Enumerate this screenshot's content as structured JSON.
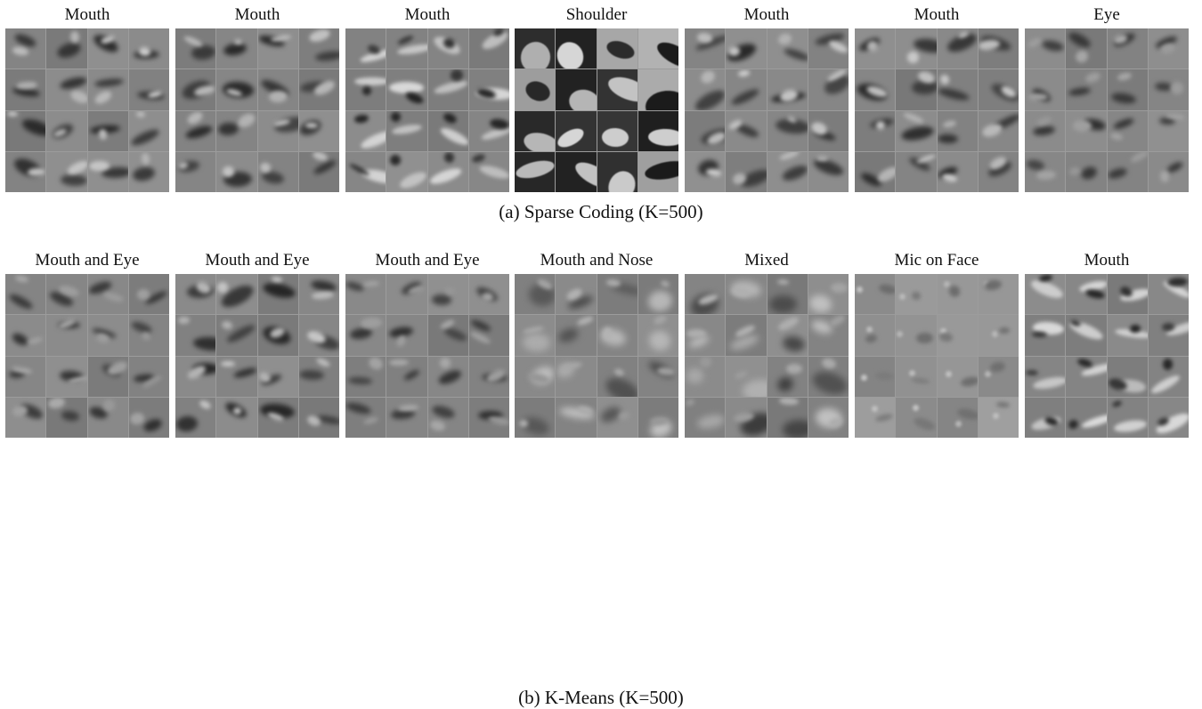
{
  "figures": [
    {
      "caption": "(a) Sparse Coding (K=500)",
      "panels": [
        {
          "label": "Mouth",
          "kind": "mouth"
        },
        {
          "label": "Mouth",
          "kind": "mouth"
        },
        {
          "label": "Mouth",
          "kind": "teeth"
        },
        {
          "label": "Shoulder",
          "kind": "shoulder"
        },
        {
          "label": "Mouth",
          "kind": "mouth"
        },
        {
          "label": "Mouth",
          "kind": "mouth"
        },
        {
          "label": "Eye",
          "kind": "eye"
        }
      ]
    },
    {
      "caption": "(b) K-Means (K=500)",
      "panels": [
        {
          "label": "Mouth and Eye",
          "kind": "eye"
        },
        {
          "label": "Mouth and Eye",
          "kind": "mouth"
        },
        {
          "label": "Mouth and Eye",
          "kind": "eye"
        },
        {
          "label": "Mouth and Nose",
          "kind": "mixed"
        },
        {
          "label": "Mixed",
          "kind": "mixed"
        },
        {
          "label": "Mic on Face",
          "kind": "mic"
        },
        {
          "label": "Mouth",
          "kind": "teeth"
        }
      ]
    }
  ]
}
